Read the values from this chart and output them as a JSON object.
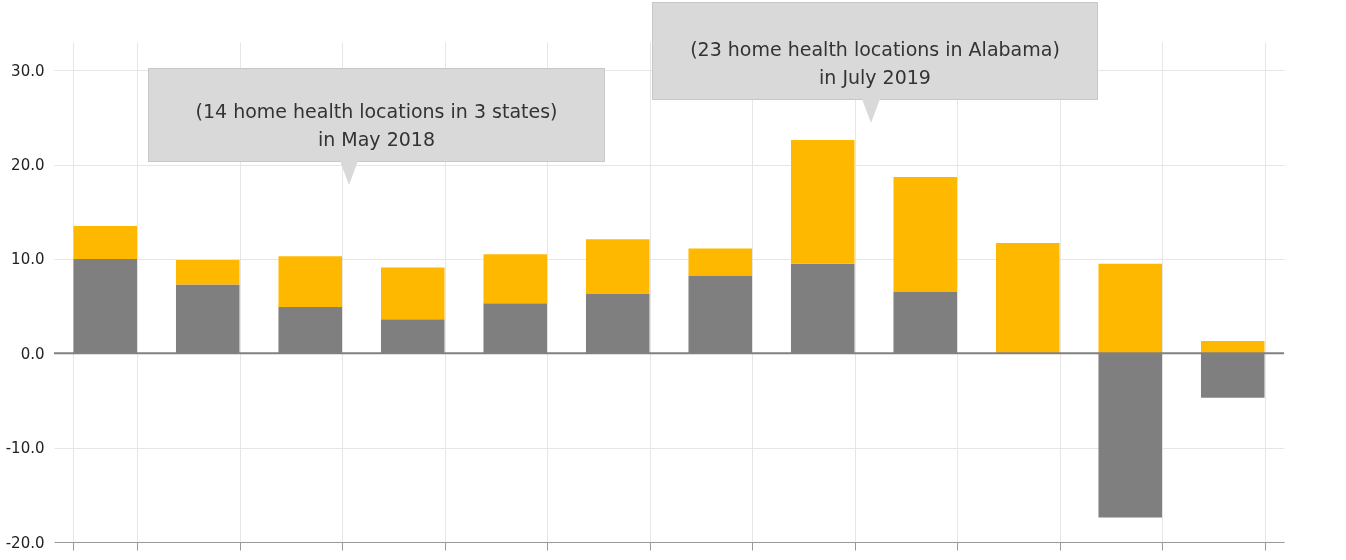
{
  "chart_data": {
    "type": "bar",
    "stacked": true,
    "categories": [
      null,
      null,
      null,
      null,
      null,
      null,
      null,
      null,
      null,
      null,
      null,
      null
    ],
    "series": [
      {
        "color": "#7f7f7f",
        "values": [
          10.0,
          7.3,
          4.9,
          3.6,
          5.3,
          6.3,
          8.2,
          9.5,
          6.5,
          0,
          -17.4,
          -4.7
        ]
      },
      {
        "color": "#ffb800",
        "values": [
          3.5,
          2.6,
          5.4,
          5.5,
          5.2,
          5.8,
          2.9,
          13.1,
          12.2,
          11.7,
          9.5,
          1.3
        ]
      }
    ],
    "ylim": [
      -20,
      33
    ],
    "yticks": [
      {
        "value": -20,
        "label": "-20.0"
      },
      {
        "value": -10,
        "label": "-10.0"
      },
      {
        "value": 0,
        "label": "0.0"
      },
      {
        "value": 10,
        "label": "10.0"
      },
      {
        "value": 20,
        "label": "20.0"
      },
      {
        "value": 30,
        "label": "30.0"
      }
    ],
    "grid": true,
    "legend": false,
    "tick_labels": "y",
    "ref_lines": [
      {
        "axis": "y",
        "value": 0,
        "color": "#808080"
      }
    ],
    "annotations": [
      "(14 home health locations in 3 states)\nin May 2018",
      "(23 home health locations in Alabama)\nin July 2019"
    ]
  }
}
